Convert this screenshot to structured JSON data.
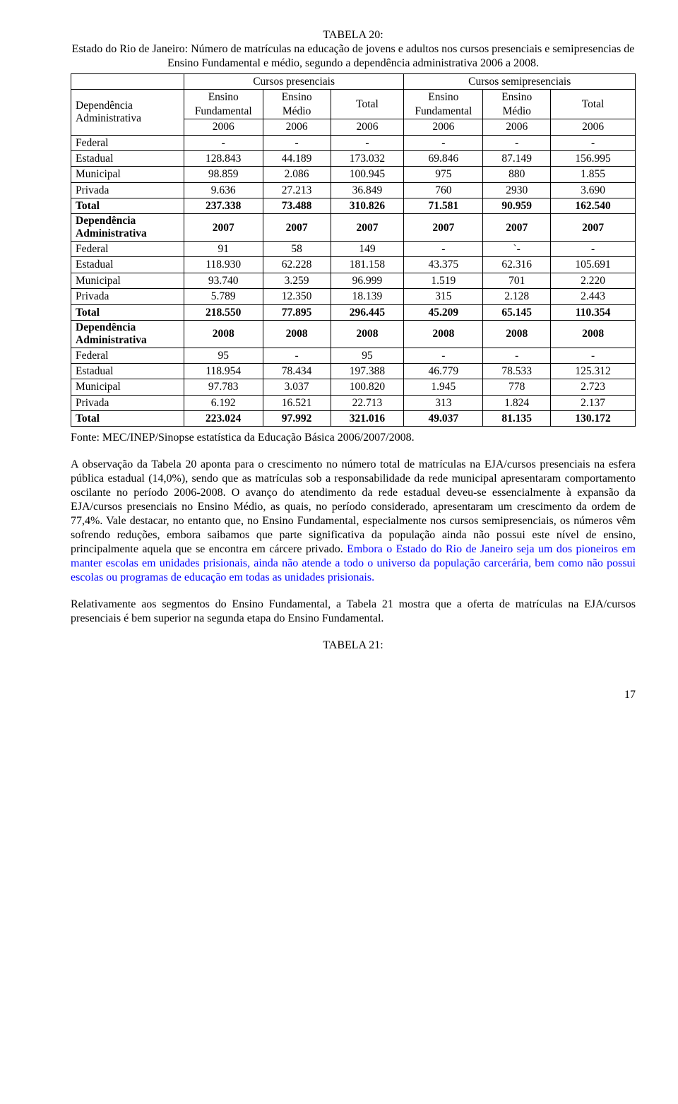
{
  "title": {
    "line1": "TABELA 20:",
    "line2": "Estado do Rio de Janeiro: Número de matrículas na educação de jovens e adultos nos cursos presenciais e semipresencias de Ensino Fundamental e médio, segundo a dependência administrativa 2006 a 2008."
  },
  "table": {
    "group1": "Cursos presenciais",
    "group2": "Cursos semipresenciais",
    "dep_label_a": "Dependência",
    "dep_label_b": "Administrativa",
    "col1": "Ensino Fundamental",
    "col2": "Ensino Médio",
    "col3": "Total",
    "col4": "Ensino Fundamental",
    "col5": "Ensino Médio",
    "col6": "Total",
    "sections": [
      {
        "year": "2006",
        "header_label": "",
        "rows": [
          {
            "label": "Federal",
            "c": [
              "-",
              "-",
              "-",
              "-",
              "-",
              "-"
            ],
            "bold": false
          },
          {
            "label": "Estadual",
            "c": [
              "128.843",
              "44.189",
              "173.032",
              "69.846",
              "87.149",
              "156.995"
            ],
            "bold": false
          },
          {
            "label": "Municipal",
            "c": [
              "98.859",
              "2.086",
              "100.945",
              "975",
              "880",
              "1.855"
            ],
            "bold": false
          },
          {
            "label": "Privada",
            "c": [
              "9.636",
              "27.213",
              "36.849",
              "760",
              "2930",
              "3.690"
            ],
            "bold": false
          },
          {
            "label": "Total",
            "c": [
              "237.338",
              "73.488",
              "310.826",
              "71.581",
              "90.959",
              "162.540"
            ],
            "bold": true
          }
        ]
      },
      {
        "year": "2007",
        "header_label": "Dependência Administrativa",
        "rows": [
          {
            "label": "Federal",
            "c": [
              "91",
              "58",
              "149",
              "-",
              "`-",
              "-"
            ],
            "bold": false
          },
          {
            "label": "Estadual",
            "c": [
              "118.930",
              "62.228",
              "181.158",
              "43.375",
              "62.316",
              "105.691"
            ],
            "bold": false
          },
          {
            "label": "Municipal",
            "c": [
              "93.740",
              "3.259",
              "96.999",
              "1.519",
              "701",
              "2.220"
            ],
            "bold": false
          },
          {
            "label": "Privada",
            "c": [
              "5.789",
              "12.350",
              "18.139",
              "315",
              "2.128",
              "2.443"
            ],
            "bold": false
          },
          {
            "label": "Total",
            "c": [
              "218.550",
              "77.895",
              "296.445",
              "45.209",
              "65.145",
              "110.354"
            ],
            "bold": true
          }
        ]
      },
      {
        "year": "2008",
        "header_label": "Dependência Administrativa",
        "rows": [
          {
            "label": "Federal",
            "c": [
              "95",
              "-",
              "95",
              "-",
              "-",
              "-"
            ],
            "bold": false
          },
          {
            "label": "Estadual",
            "c": [
              "118.954",
              "78.434",
              "197.388",
              "46.779",
              "78.533",
              "125.312"
            ],
            "bold": false
          },
          {
            "label": "Municipal",
            "c": [
              "97.783",
              "3.037",
              "100.820",
              "1.945",
              "778",
              "2.723"
            ],
            "bold": false
          },
          {
            "label": "Privada",
            "c": [
              "6.192",
              "16.521",
              "22.713",
              "313",
              "1.824",
              "2.137"
            ],
            "bold": false
          },
          {
            "label": "Total",
            "c": [
              "223.024",
              "97.992",
              "321.016",
              "49.037",
              "81.135",
              "130.172"
            ],
            "bold": true
          }
        ]
      }
    ]
  },
  "source": "Fonte: MEC/INEP/Sinopse estatística da Educação Básica 2006/2007/2008.",
  "para1a": "A observação da Tabela 20 aponta para o crescimento no número total de matrículas na EJA/cursos presenciais na esfera pública estadual (14,0%), sendo que as matrículas sob a responsabilidade da rede municipal apresentaram comportamento oscilante no período 2006-2008.  O avanço do atendimento da rede estadual deveu-se essencialmente à expansão da EJA/cursos presenciais no Ensino Médio, as quais, no período considerado, apresentaram um crescimento da ordem de 77,4%. Vale destacar, no entanto que, no Ensino Fundamental, especialmente nos cursos semipresenciais, os números vêm sofrendo reduções, embora saibamos que parte significativa da população ainda não possui este nível de ensino, principalmente aquela que se encontra em cárcere privado. ",
  "para1b": "Embora o Estado do Rio de Janeiro seja um dos pioneiros em manter escolas em unidades prisionais, ainda não atende a todo o universo da população carcerária, bem como não possui escolas ou programas de educação em todas as unidades prisionais.",
  "para2": "Relativamente aos segmentos do Ensino Fundamental, a Tabela 21 mostra que a oferta de matrículas na EJA/cursos presenciais é bem superior na segunda etapa do Ensino Fundamental.",
  "next_table": "TABELA 21:",
  "page_num": "17"
}
